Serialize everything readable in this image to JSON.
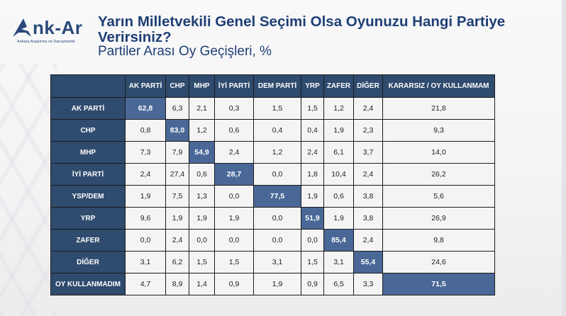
{
  "logo": {
    "text": "nk-Ar",
    "subtitle": "Ankara Araştırma ve Danışmanlık"
  },
  "title": "Yarın Milletvekili Genel Seçimi Olsa Oyunuzu Hangi Partiye Verirsiniz?",
  "subtitle": "Partiler Arası Oy Geçişleri, %",
  "colors": {
    "header_bg": "#2f4b6e",
    "highlight_bg": "#4a6897",
    "cell_bg": "#f4f4f4",
    "title_color": "#1f3f75"
  },
  "table": {
    "columns": [
      "AK PARTİ",
      "CHP",
      "MHP",
      "İYİ PARTİ",
      "DEM PARTİ",
      "YRP",
      "ZAFER",
      "DİĞER",
      "KARARSIZ / OY KULLANMAM"
    ],
    "rows": [
      {
        "label": "AK PARTİ",
        "values": [
          "62,8",
          "6,3",
          "2,1",
          "0,3",
          "1,5",
          "1,5",
          "1,2",
          "2,4",
          "21,8"
        ],
        "highlight": 0
      },
      {
        "label": "CHP",
        "values": [
          "0,8",
          "83,0",
          "1,2",
          "0,6",
          "0,4",
          "0,4",
          "1,9",
          "2,3",
          "9,3"
        ],
        "highlight": 1
      },
      {
        "label": "MHP",
        "values": [
          "7,3",
          "7,9",
          "54,9",
          "2,4",
          "1,2",
          "2,4",
          "6,1",
          "3,7",
          "14,0"
        ],
        "highlight": 2
      },
      {
        "label": "İYİ PARTİ",
        "values": [
          "2,4",
          "27,4",
          "0,6",
          "28,7",
          "0,0",
          "1,8",
          "10,4",
          "2,4",
          "26,2"
        ],
        "highlight": 3
      },
      {
        "label": "YSP/DEM",
        "values": [
          "1,9",
          "7,5",
          "1,3",
          "0,0",
          "77,5",
          "1,9",
          "0,6",
          "3,8",
          "5,6"
        ],
        "highlight": 4
      },
      {
        "label": "YRP",
        "values": [
          "9,6",
          "1,9",
          "1,9",
          "1,9",
          "0,0",
          "51,9",
          "1,9",
          "3,8",
          "26,9"
        ],
        "highlight": 5
      },
      {
        "label": "ZAFER",
        "values": [
          "0,0",
          "2,4",
          "0,0",
          "0,0",
          "0,0",
          "0,0",
          "85,4",
          "2,4",
          "9,8"
        ],
        "highlight": 6
      },
      {
        "label": "DİĞER",
        "values": [
          "3,1",
          "6,2",
          "1,5",
          "1,5",
          "3,1",
          "1,5",
          "3,1",
          "55,4",
          "24,6"
        ],
        "highlight": 7
      },
      {
        "label": "OY KULLANMADIM",
        "values": [
          "4,7",
          "8,9",
          "1,4",
          "0,9",
          "1,9",
          "0,9",
          "6,5",
          "3,3",
          "71,5"
        ],
        "highlight": 8
      }
    ]
  }
}
